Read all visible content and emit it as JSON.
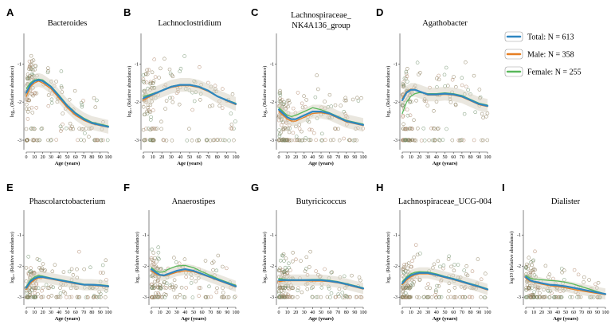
{
  "colors": {
    "total": "#2e86c1",
    "male": "#e67e22",
    "female": "#58b85a",
    "point": "#8a8a7a",
    "band": "#d9d4c4"
  },
  "legend": [
    {
      "key": "total",
      "label": "Total: N = 613"
    },
    {
      "key": "male",
      "label": "Male: N = 358"
    },
    {
      "key": "female",
      "label": "Female: N = 255"
    }
  ],
  "x_ticks": [
    "0",
    "10",
    "20",
    "30",
    "40",
    "50",
    "60",
    "70",
    "80",
    "90",
    "100"
  ],
  "y_ticks": [
    "-3",
    "-2",
    "-1"
  ],
  "chart_data": [
    {
      "letter": "A",
      "title_lines": [
        "Bacteroides"
      ],
      "type": "scatter",
      "xlabel": "Age (years)",
      "ylabel": "log₁₀ (Relative abundance)",
      "xlim": [
        0,
        100
      ],
      "ylim": [
        -3.25,
        -0.2
      ],
      "trend_x": [
        0,
        5,
        10,
        15,
        20,
        30,
        40,
        50,
        60,
        70,
        80,
        90,
        100
      ],
      "series": [
        {
          "name": "Total",
          "values": [
            -1.75,
            -1.55,
            -1.45,
            -1.42,
            -1.45,
            -1.6,
            -1.85,
            -2.1,
            -2.3,
            -2.45,
            -2.55,
            -2.6,
            -2.65
          ]
        },
        {
          "name": "Male",
          "values": [
            -1.85,
            -1.6,
            -1.5,
            -1.45,
            -1.5,
            -1.65,
            -1.9,
            -2.15,
            -2.35,
            -2.48,
            -2.57,
            -2.62,
            -2.66
          ]
        },
        {
          "name": "Female",
          "values": [
            -1.65,
            -1.5,
            -1.42,
            -1.4,
            -1.42,
            -1.58,
            -1.82,
            -2.08,
            -2.28,
            -2.42,
            -2.53,
            -2.58,
            -2.63
          ]
        }
      ]
    },
    {
      "letter": "B",
      "title_lines": [
        "Lachnoclostridium"
      ],
      "type": "scatter",
      "xlabel": "Age (years)",
      "ylabel": "log₁₀ (Relative abundance)",
      "xlim": [
        0,
        100
      ],
      "ylim": [
        -3.25,
        -0.2
      ],
      "trend_x": [
        0,
        5,
        10,
        15,
        20,
        30,
        40,
        50,
        60,
        70,
        80,
        90,
        100
      ],
      "series": [
        {
          "name": "Total",
          "values": [
            -1.9,
            -1.85,
            -1.8,
            -1.75,
            -1.7,
            -1.6,
            -1.55,
            -1.55,
            -1.6,
            -1.7,
            -1.85,
            -1.95,
            -2.05
          ]
        },
        {
          "name": "Male",
          "values": [
            -1.95,
            -1.88,
            -1.82,
            -1.76,
            -1.7,
            -1.62,
            -1.57,
            -1.57,
            -1.62,
            -1.72,
            -1.85,
            -1.97,
            -2.07
          ]
        },
        {
          "name": "Female",
          "values": [
            -1.85,
            -1.82,
            -1.78,
            -1.74,
            -1.69,
            -1.59,
            -1.54,
            -1.54,
            -1.59,
            -1.69,
            -1.84,
            -1.94,
            -2.03
          ]
        }
      ]
    },
    {
      "letter": "C",
      "title_lines": [
        "Lachnospiraceae_",
        "NK4A136_group"
      ],
      "type": "scatter",
      "xlabel": "Age (years)",
      "ylabel": "log₁₀ (Relative abundance)",
      "xlim": [
        0,
        100
      ],
      "ylim": [
        -3.25,
        -0.2
      ],
      "trend_x": [
        0,
        5,
        10,
        15,
        20,
        30,
        40,
        50,
        60,
        70,
        80,
        90,
        100
      ],
      "series": [
        {
          "name": "Total",
          "values": [
            -2.2,
            -2.3,
            -2.4,
            -2.45,
            -2.45,
            -2.35,
            -2.25,
            -2.25,
            -2.3,
            -2.4,
            -2.5,
            -2.55,
            -2.6
          ]
        },
        {
          "name": "Male",
          "values": [
            -2.25,
            -2.35,
            -2.45,
            -2.5,
            -2.5,
            -2.4,
            -2.3,
            -2.28,
            -2.32,
            -2.42,
            -2.52,
            -2.57,
            -2.62
          ]
        },
        {
          "name": "Female",
          "values": [
            -2.15,
            -2.25,
            -2.35,
            -2.38,
            -2.35,
            -2.25,
            -2.15,
            -2.2,
            -2.28,
            -2.38,
            -2.48,
            -2.53,
            -2.58
          ]
        }
      ]
    },
    {
      "letter": "D",
      "title_lines": [
        "Agathobacter"
      ],
      "type": "scatter",
      "xlabel": "Age (years)",
      "ylabel": "log₁₀ (Relative abundance)",
      "xlim": [
        0,
        100
      ],
      "ylim": [
        -3.25,
        -0.2
      ],
      "trend_x": [
        0,
        5,
        10,
        15,
        20,
        30,
        40,
        50,
        60,
        70,
        80,
        90,
        100
      ],
      "series": [
        {
          "name": "Total",
          "values": [
            -1.95,
            -1.75,
            -1.68,
            -1.68,
            -1.72,
            -1.8,
            -1.8,
            -1.78,
            -1.8,
            -1.85,
            -1.95,
            -2.05,
            -2.1
          ]
        },
        {
          "name": "Male",
          "values": [
            -1.9,
            -1.72,
            -1.66,
            -1.67,
            -1.72,
            -1.82,
            -1.82,
            -1.8,
            -1.82,
            -1.87,
            -1.97,
            -2.07,
            -2.12
          ]
        },
        {
          "name": "Female",
          "values": [
            -2.3,
            -2.0,
            -1.85,
            -1.78,
            -1.75,
            -1.78,
            -1.78,
            -1.76,
            -1.78,
            -1.83,
            -1.93,
            -2.03,
            -2.08
          ]
        }
      ]
    },
    {
      "letter": "E",
      "title_lines": [
        "Phascolarctobacterium"
      ],
      "type": "scatter",
      "xlabel": "Age (years)",
      "ylabel": "log₁₀ (Relative abundance)",
      "xlim": [
        0,
        100
      ],
      "ylim": [
        -3.25,
        -0.2
      ],
      "trend_x": [
        0,
        5,
        10,
        15,
        20,
        30,
        40,
        50,
        60,
        70,
        80,
        90,
        100
      ],
      "series": [
        {
          "name": "Total",
          "values": [
            -2.7,
            -2.5,
            -2.4,
            -2.35,
            -2.35,
            -2.4,
            -2.45,
            -2.5,
            -2.55,
            -2.6,
            -2.6,
            -2.62,
            -2.65
          ]
        },
        {
          "name": "Male",
          "values": [
            -2.75,
            -2.55,
            -2.45,
            -2.38,
            -2.37,
            -2.42,
            -2.47,
            -2.52,
            -2.57,
            -2.61,
            -2.62,
            -2.64,
            -2.67
          ]
        },
        {
          "name": "Female",
          "values": [
            -2.65,
            -2.45,
            -2.35,
            -2.3,
            -2.32,
            -2.38,
            -2.43,
            -2.48,
            -2.53,
            -2.58,
            -2.59,
            -2.6,
            -2.63
          ]
        }
      ]
    },
    {
      "letter": "F",
      "title_lines": [
        "Anaerostipes"
      ],
      "type": "scatter",
      "xlabel": "Age (years)",
      "ylabel": "log₁₀ (Relative abundance)",
      "xlim": [
        0,
        100
      ],
      "ylim": [
        -3.25,
        -0.2
      ],
      "trend_x": [
        0,
        5,
        10,
        15,
        20,
        30,
        40,
        50,
        60,
        70,
        80,
        90,
        100
      ],
      "series": [
        {
          "name": "Total",
          "values": [
            -2.1,
            -2.2,
            -2.28,
            -2.3,
            -2.25,
            -2.15,
            -2.1,
            -2.15,
            -2.25,
            -2.35,
            -2.45,
            -2.55,
            -2.65
          ]
        },
        {
          "name": "Male",
          "values": [
            -2.15,
            -2.25,
            -2.3,
            -2.32,
            -2.28,
            -2.2,
            -2.15,
            -2.18,
            -2.27,
            -2.37,
            -2.47,
            -2.57,
            -2.67
          ]
        },
        {
          "name": "Female",
          "values": [
            -2.05,
            -2.15,
            -2.2,
            -2.18,
            -2.1,
            -2.0,
            -1.98,
            -2.05,
            -2.18,
            -2.3,
            -2.42,
            -2.52,
            -2.62
          ]
        }
      ]
    },
    {
      "letter": "G",
      "title_lines": [
        "Butyricicoccus"
      ],
      "type": "scatter",
      "xlabel": "Age (years)",
      "ylabel": "log₁₀ (Relative abundance)",
      "xlim": [
        0,
        100
      ],
      "ylim": [
        -3.25,
        -0.2
      ],
      "trend_x": [
        0,
        5,
        10,
        15,
        20,
        30,
        40,
        50,
        60,
        70,
        80,
        90,
        100
      ],
      "series": [
        {
          "name": "Total",
          "values": [
            -2.45,
            -2.45,
            -2.45,
            -2.45,
            -2.45,
            -2.45,
            -2.45,
            -2.45,
            -2.48,
            -2.52,
            -2.58,
            -2.65,
            -2.72
          ]
        },
        {
          "name": "Male",
          "values": [
            -2.5,
            -2.48,
            -2.47,
            -2.47,
            -2.47,
            -2.47,
            -2.48,
            -2.48,
            -2.5,
            -2.54,
            -2.6,
            -2.67,
            -2.74
          ]
        },
        {
          "name": "Female",
          "values": [
            -2.4,
            -2.42,
            -2.43,
            -2.44,
            -2.44,
            -2.44,
            -2.43,
            -2.43,
            -2.46,
            -2.5,
            -2.56,
            -2.63,
            -2.7
          ]
        }
      ]
    },
    {
      "letter": "H",
      "title_lines": [
        "Lachnospiraceae_UCG-004"
      ],
      "type": "scatter",
      "xlabel": "Age (years)",
      "ylabel": "log₁₀ (Relative abundance)",
      "xlim": [
        0,
        100
      ],
      "ylim": [
        -3.25,
        -0.2
      ],
      "trend_x": [
        0,
        5,
        10,
        15,
        20,
        30,
        40,
        50,
        60,
        70,
        80,
        90,
        100
      ],
      "series": [
        {
          "name": "Total",
          "values": [
            -2.55,
            -2.4,
            -2.3,
            -2.25,
            -2.22,
            -2.22,
            -2.28,
            -2.35,
            -2.42,
            -2.5,
            -2.58,
            -2.66,
            -2.75
          ]
        },
        {
          "name": "Male",
          "values": [
            -2.6,
            -2.45,
            -2.35,
            -2.28,
            -2.25,
            -2.25,
            -2.3,
            -2.37,
            -2.44,
            -2.52,
            -2.6,
            -2.68,
            -2.77
          ]
        },
        {
          "name": "Female",
          "values": [
            -2.5,
            -2.35,
            -2.25,
            -2.2,
            -2.18,
            -2.19,
            -2.25,
            -2.33,
            -2.4,
            -2.48,
            -2.56,
            -2.64,
            -2.73
          ]
        }
      ]
    },
    {
      "letter": "I",
      "title_lines": [
        "Dialister"
      ],
      "type": "scatter",
      "xlabel": "Age (years)",
      "ylabel": "log10 (Relative abundance)",
      "xlim": [
        0,
        100
      ],
      "ylim": [
        -3.25,
        -0.2
      ],
      "trend_x": [
        0,
        5,
        10,
        15,
        20,
        30,
        40,
        50,
        60,
        70,
        80,
        90,
        100
      ],
      "series": [
        {
          "name": "Total",
          "values": [
            -2.35,
            -2.45,
            -2.5,
            -2.52,
            -2.55,
            -2.6,
            -2.62,
            -2.65,
            -2.7,
            -2.75,
            -2.8,
            -2.85,
            -2.9
          ]
        },
        {
          "name": "Male",
          "values": [
            -2.4,
            -2.48,
            -2.52,
            -2.55,
            -2.58,
            -2.63,
            -2.66,
            -2.7,
            -2.75,
            -2.8,
            -2.84,
            -2.88,
            -2.92
          ]
        },
        {
          "name": "Female",
          "values": [
            -2.3,
            -2.38,
            -2.42,
            -2.43,
            -2.44,
            -2.46,
            -2.48,
            -2.52,
            -2.58,
            -2.66,
            -2.74,
            -2.82,
            -2.9
          ]
        }
      ]
    }
  ]
}
